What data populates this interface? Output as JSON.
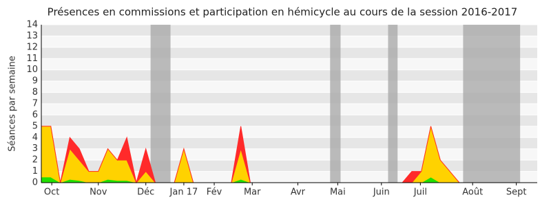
{
  "chart_data": {
    "type": "area",
    "title": "Présences en commissions et participation en hémicycle au cours de la session 2016-2017",
    "y_label": "Séances par semaine",
    "x": [
      0,
      1,
      2,
      3,
      4,
      5,
      6,
      7,
      8,
      9,
      10,
      11,
      12,
      13,
      14,
      15,
      16,
      17,
      18,
      19,
      20,
      21,
      22,
      23,
      24,
      25,
      26,
      27,
      28,
      29,
      30,
      31,
      32,
      33,
      34,
      35,
      36,
      37,
      38,
      39,
      40,
      41,
      42,
      43,
      44,
      45,
      46,
      47,
      48,
      49,
      50,
      51,
      52
    ],
    "series": [
      {
        "color": "#22e000",
        "values": [
          0.5,
          0.5,
          0,
          0.3,
          0.2,
          0,
          0,
          0.3,
          0.2,
          0.2,
          0,
          0,
          0,
          0,
          0,
          0,
          0,
          0,
          0,
          0,
          0,
          0.3,
          0,
          0,
          0,
          0,
          0,
          0,
          0,
          0,
          0,
          0,
          0,
          0,
          0,
          0,
          0,
          0,
          0,
          0,
          0,
          0.5,
          0,
          0,
          0,
          0,
          0,
          0,
          0,
          0,
          0,
          0,
          0
        ]
      },
      {
        "color": "#ffd200",
        "values": [
          4.5,
          4.5,
          0,
          2.7,
          1.8,
          1,
          1,
          2.7,
          1.8,
          1.8,
          0,
          1,
          0,
          0,
          0,
          3,
          0,
          0,
          0,
          0,
          0,
          2.7,
          0,
          0,
          0,
          0,
          0,
          0,
          0,
          0,
          0,
          0,
          0,
          0,
          0,
          0,
          0,
          0,
          0,
          0,
          1,
          4.5,
          2,
          1,
          0,
          0,
          0,
          0,
          0,
          0,
          0,
          0,
          0
        ]
      },
      {
        "color": "#ff2a2a",
        "values": [
          0,
          0,
          0,
          1,
          1,
          0,
          0,
          0,
          0,
          2,
          0,
          2,
          0,
          0,
          0,
          0,
          0,
          0,
          0,
          0,
          0,
          2,
          0,
          0,
          0,
          0,
          0,
          0,
          0,
          0,
          0,
          0,
          0,
          0,
          0,
          0,
          0,
          0,
          0,
          1,
          0,
          0,
          0,
          0,
          0,
          0,
          0,
          0,
          0,
          0,
          0,
          0,
          0
        ]
      }
    ],
    "shaded_ranges": [
      [
        11.5,
        13.6
      ],
      [
        30.4,
        31.5
      ],
      [
        36.5,
        37.5
      ],
      [
        44.4,
        50.4
      ]
    ],
    "xlim": [
      0,
      52.2
    ],
    "xticks": [
      {
        "value": 1.1,
        "label": "Oct"
      },
      {
        "value": 6,
        "label": "Nov"
      },
      {
        "value": 11,
        "label": "Déc"
      },
      {
        "value": 15,
        "label": "Jan 17"
      },
      {
        "value": 18.2,
        "label": "Fév"
      },
      {
        "value": 22.2,
        "label": "Mar"
      },
      {
        "value": 27,
        "label": "Avr"
      },
      {
        "value": 31.2,
        "label": "Mai"
      },
      {
        "value": 35.8,
        "label": "Juin"
      },
      {
        "value": 39.9,
        "label": "Juil"
      },
      {
        "value": 45.4,
        "label": "Août"
      },
      {
        "value": 50,
        "label": "Sept"
      }
    ],
    "ylim": [
      0,
      14
    ],
    "yticks": [
      0,
      1,
      2,
      3,
      4,
      5,
      6,
      7,
      8,
      9,
      10,
      11,
      12,
      13,
      14
    ],
    "grid": true
  }
}
